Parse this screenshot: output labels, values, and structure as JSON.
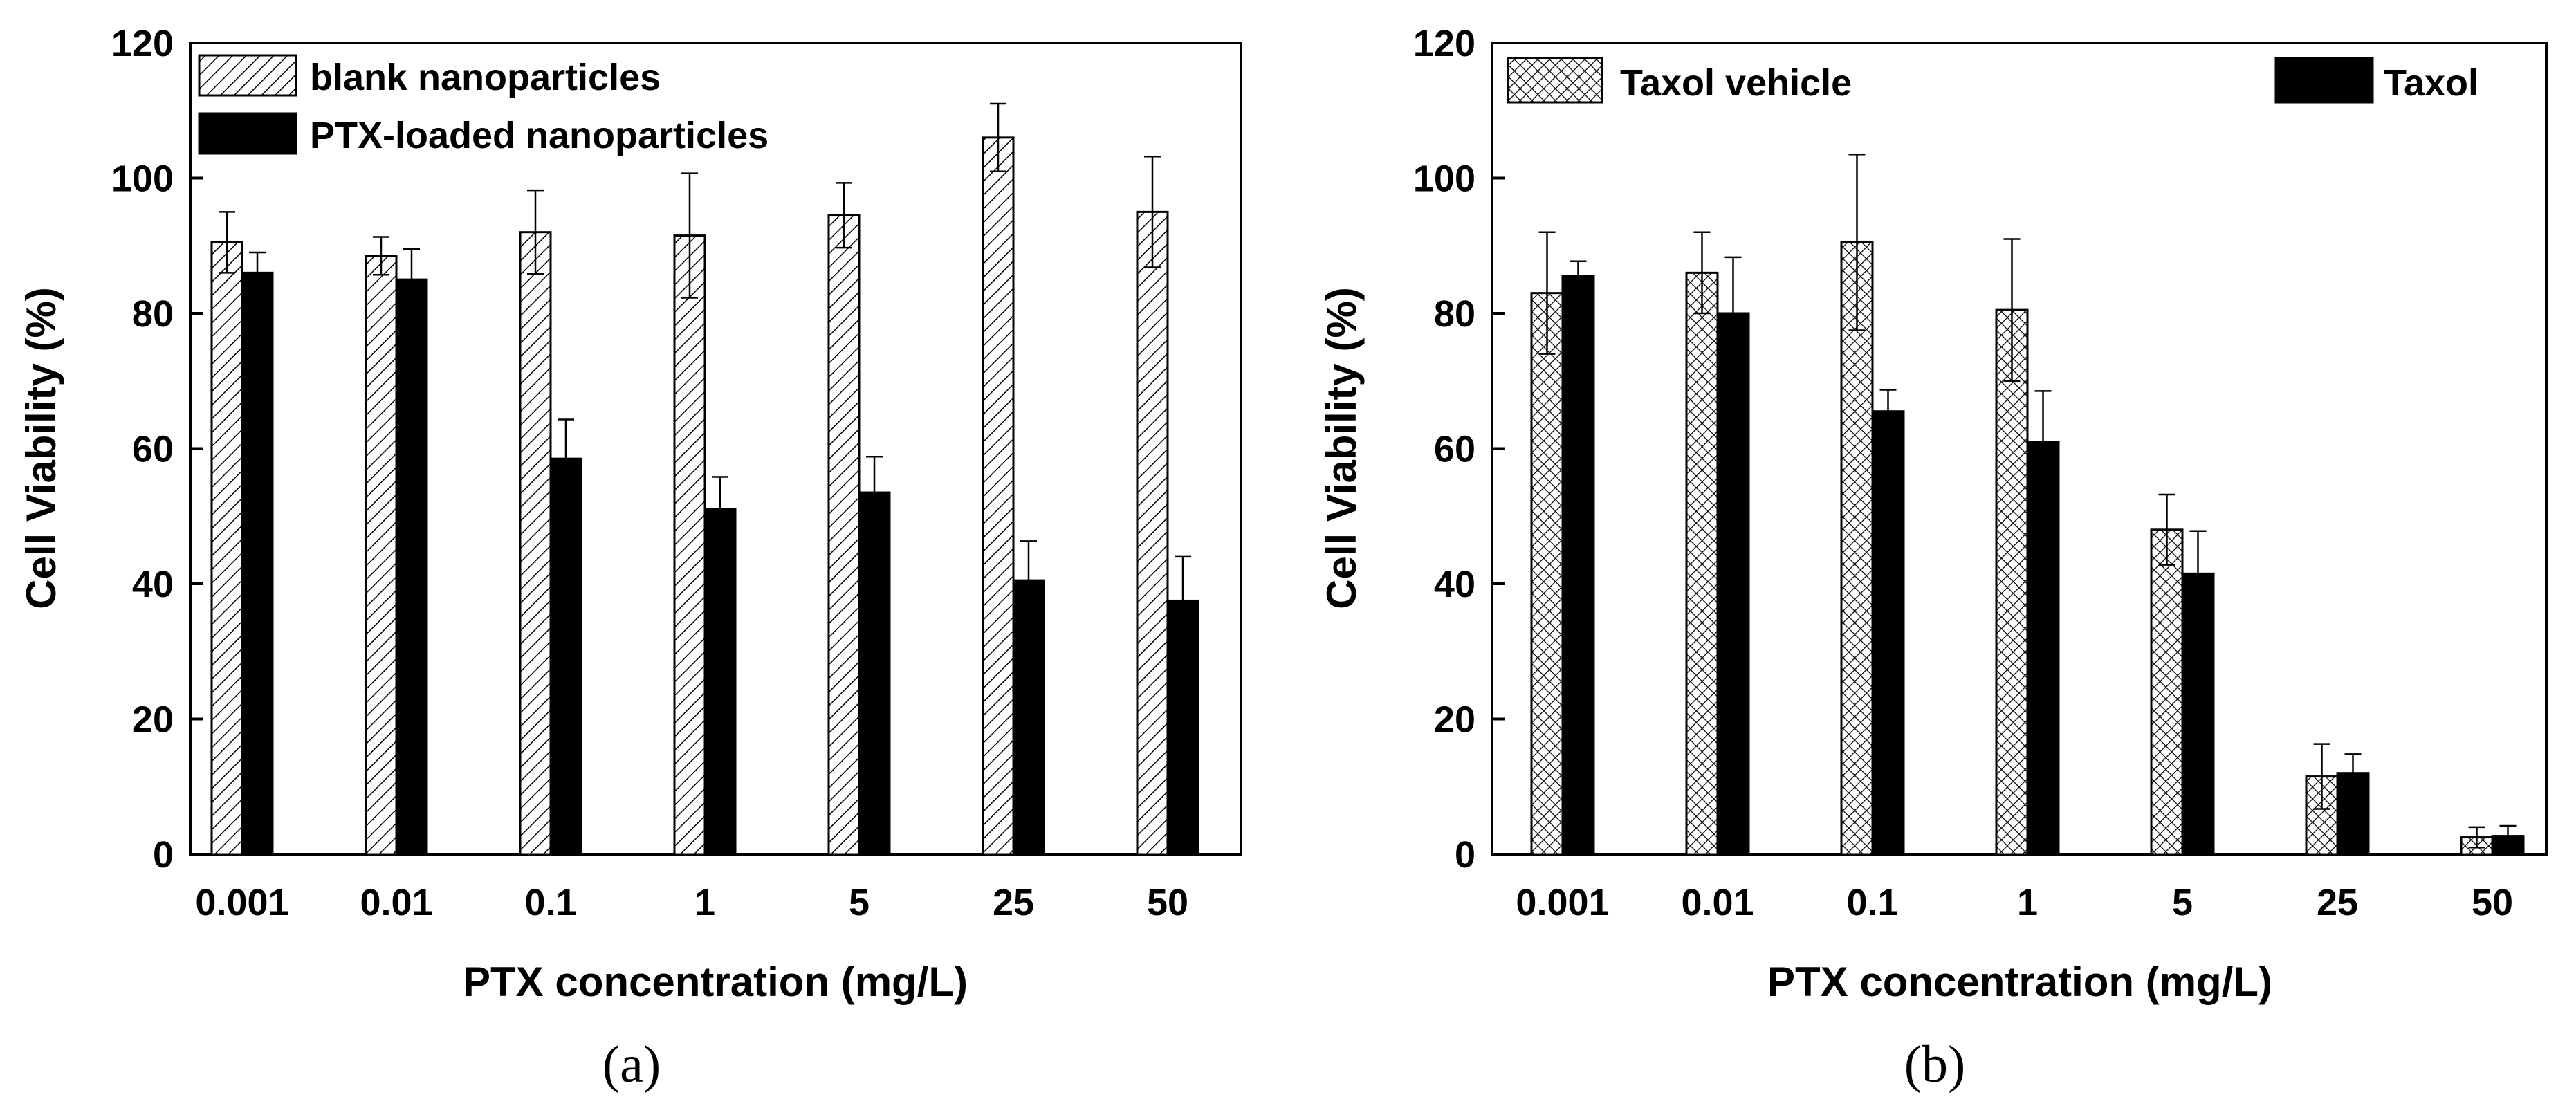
{
  "chart_data": [
    {
      "type": "bar",
      "panel_label": "(a)",
      "xlabel": "PTX concentration (mg/L)",
      "ylabel": "Cell Viability (%)",
      "ylim": [
        0,
        120
      ],
      "yticks": [
        0,
        20,
        40,
        60,
        80,
        100,
        120
      ],
      "categories": [
        "0.001",
        "0.01",
        "0.1",
        "1",
        "5",
        "25",
        "50"
      ],
      "legend_position": "top-left",
      "series": [
        {
          "name": "blank nanoparticles",
          "pattern": "diagonal-hatch",
          "values": [
            90.5,
            88.5,
            92,
            91.5,
            94.5,
            106,
            95
          ],
          "errors": [
            4.5,
            2.8,
            6.2,
            9.2,
            4.8,
            5,
            8.2
          ]
        },
        {
          "name": "PTX-loaded nanoparticles",
          "pattern": "solid-black",
          "values": [
            86,
            85,
            58.5,
            51,
            53.5,
            40.5,
            37.5
          ],
          "errors": [
            3,
            4.5,
            5.8,
            4.8,
            5.3,
            5.8,
            6.5
          ]
        }
      ]
    },
    {
      "type": "bar",
      "panel_label": "(b)",
      "xlabel": "PTX concentration (mg/L)",
      "ylabel": "Cell Viability (%)",
      "ylim": [
        0,
        120
      ],
      "yticks": [
        0,
        20,
        40,
        60,
        80,
        100,
        120
      ],
      "categories": [
        "0.001",
        "0.01",
        "0.1",
        "1",
        "5",
        "25",
        "50"
      ],
      "legend_position": "top",
      "series": [
        {
          "name": "Taxol vehicle",
          "pattern": "cross-hatch",
          "values": [
            83,
            86,
            90.5,
            80.5,
            48,
            11.5,
            2.5
          ],
          "errors": [
            9,
            6,
            13,
            10.5,
            5.2,
            4.8,
            1.5
          ]
        },
        {
          "name": "Taxol",
          "pattern": "solid-black",
          "values": [
            85.5,
            80,
            65.5,
            61,
            41.5,
            12,
            2.7
          ],
          "errors": [
            2.2,
            8.3,
            3.2,
            7.5,
            6.3,
            2.8,
            1.5
          ]
        }
      ]
    }
  ]
}
